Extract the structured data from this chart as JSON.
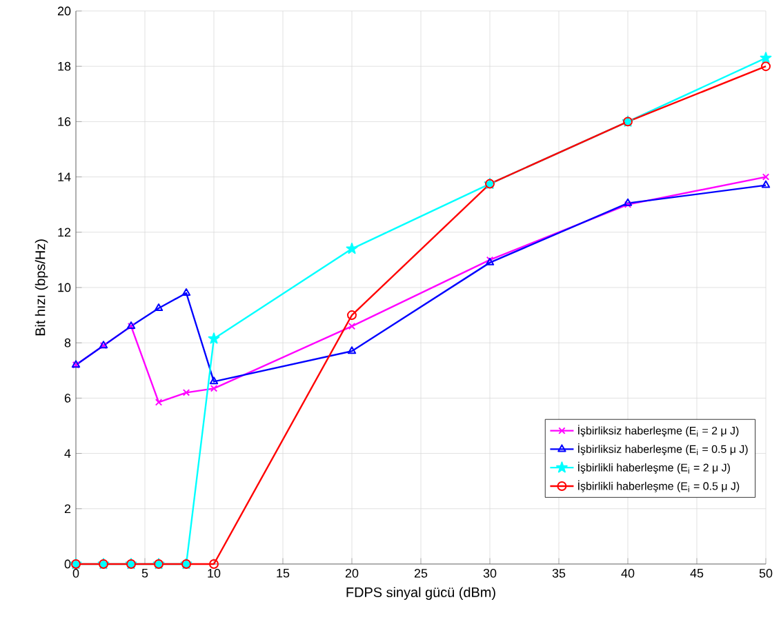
{
  "chart_data": {
    "type": "line",
    "xlabel": "FDPS sinyal gücü (dBm)",
    "ylabel": "Bit hızı (bps/Hz)",
    "x": [
      0,
      2,
      4,
      6,
      8,
      10,
      20,
      30,
      40,
      50
    ],
    "xlim": [
      0,
      50
    ],
    "xticks": [
      0,
      5,
      10,
      15,
      20,
      25,
      30,
      35,
      40,
      45,
      50
    ],
    "ylim": [
      0,
      20
    ],
    "yticks": [
      0,
      2,
      4,
      6,
      8,
      10,
      12,
      14,
      16,
      18,
      20
    ],
    "grid": true,
    "legend": "bottom right",
    "line_style": "solid",
    "series": [
      {
        "name": "İşbirliksiz haberleşme (E$_{i}$ = 2 μ J)",
        "color": "#ff00ff",
        "marker": "cross",
        "values": [
          7.2,
          7.9,
          8.6,
          5.85,
          6.2,
          6.35,
          8.6,
          11.0,
          13.0,
          14.0
        ]
      },
      {
        "name": "İşbirliksiz haberleşme (E$_{i}$ = 0.5 μ J)",
        "color": "#0000ff",
        "marker": "triangle",
        "values": [
          7.2,
          7.9,
          8.6,
          9.25,
          9.8,
          6.6,
          7.7,
          10.9,
          13.05,
          13.7
        ]
      },
      {
        "name": "İşbirlikli haberleşme (E$_{i}$ = 2 μ J)",
        "color": "#00ffff",
        "marker": "star",
        "values": [
          0,
          0,
          0,
          0,
          0,
          8.15,
          11.4,
          13.75,
          16.0,
          18.3
        ]
      },
      {
        "name": "İşbirlikli haberleşme (E$_{i}$ = 0.5 μ J)",
        "color": "#ff0000",
        "marker": "circle",
        "values": [
          0,
          0,
          0,
          0,
          0,
          0,
          9.0,
          13.75,
          16.0,
          18.0
        ]
      }
    ]
  }
}
